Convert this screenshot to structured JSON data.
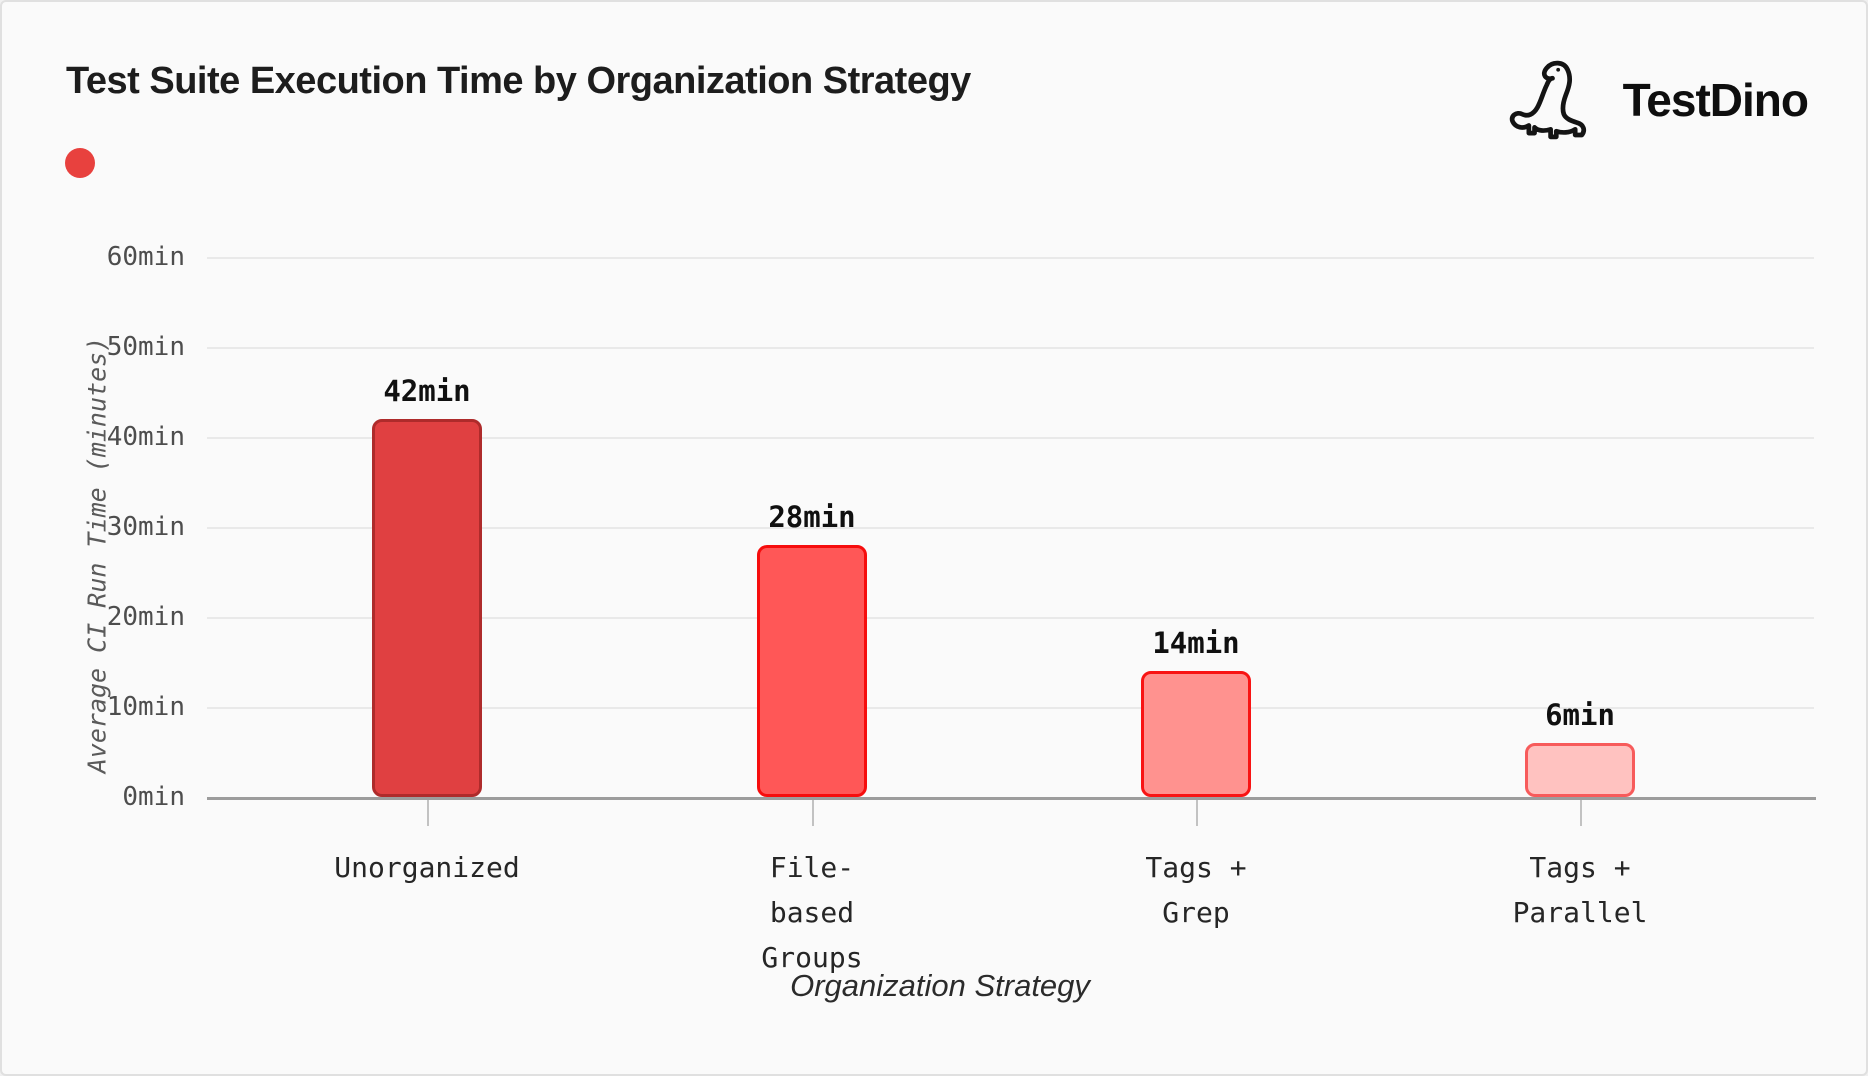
{
  "header": {
    "title": "Test Suite Execution Time by Organization Strategy",
    "logo_text": "TestDino",
    "logo_icon": "dino-icon"
  },
  "legend": {
    "dot_color": "#E8413E"
  },
  "chart_data": {
    "type": "bar",
    "title": "Test Suite Execution Time by Organization Strategy",
    "xlabel": "Organization Strategy",
    "ylabel": "Average CI Run Time (minutes)",
    "categories": [
      "Unorganized",
      "File-based Groups",
      "Tags + Grep",
      "Tags + Parallel"
    ],
    "values": [
      42,
      28,
      14,
      6
    ],
    "ylim": [
      0,
      60
    ],
    "grid": true,
    "legend_position": "top-left",
    "y_ticks": [
      {
        "value": 0,
        "label": "0min"
      },
      {
        "value": 10,
        "label": "10min"
      },
      {
        "value": 20,
        "label": "20min"
      },
      {
        "value": 30,
        "label": "30min"
      },
      {
        "value": 40,
        "label": "40min"
      },
      {
        "value": 50,
        "label": "50min"
      },
      {
        "value": 60,
        "label": "60min"
      }
    ],
    "bars": [
      {
        "category": "Unorganized",
        "category_lines": "Unorganized",
        "value": 42,
        "value_label": "42min",
        "fill": "#E04041",
        "stroke": "#AE2B2B"
      },
      {
        "category": "File-based Groups",
        "category_lines": "File-\nbased\nGroups",
        "value": 28,
        "value_label": "28min",
        "fill": "#FF5757",
        "stroke": "#F60D0D"
      },
      {
        "category": "Tags + Grep",
        "category_lines": "Tags +\nGrep",
        "value": 14,
        "value_label": "14min",
        "fill": "#FF928F",
        "stroke": "#F81414"
      },
      {
        "category": "Tags + Parallel",
        "category_lines": "Tags +\nParallel",
        "value": 6,
        "value_label": "6min",
        "fill": "#FFC2C0",
        "stroke": "#F75B5B"
      }
    ]
  }
}
